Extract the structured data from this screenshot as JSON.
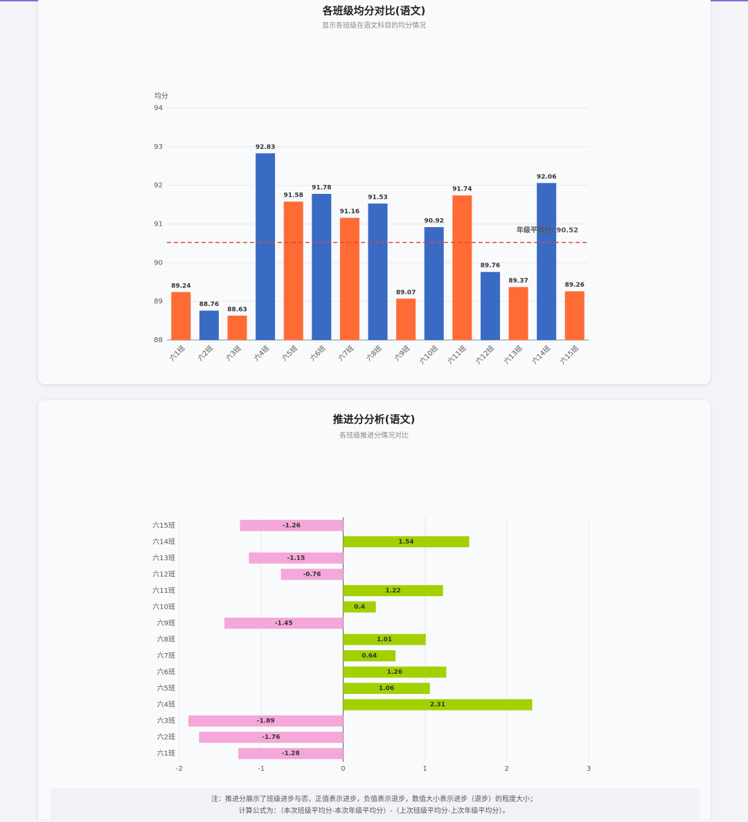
{
  "chart_data": [
    {
      "type": "bar",
      "title": "各班级均分对比(语文)",
      "subtitle": "显示各班级在语文科目的均分情况",
      "y_label": "均分",
      "categories": [
        "六1班",
        "六2班",
        "六3班",
        "六4班",
        "六5班",
        "六6班",
        "六7班",
        "六8班",
        "六9班",
        "六10班",
        "六11班",
        "六12班",
        "六13班",
        "六14班",
        "六15班"
      ],
      "values": [
        89.24,
        88.76,
        88.63,
        92.83,
        91.58,
        91.78,
        91.16,
        91.53,
        89.07,
        90.92,
        91.74,
        89.76,
        89.37,
        92.06,
        89.26
      ],
      "colors": [
        "#ff6b35",
        "#3a6bc4",
        "#ff6b35",
        "#3a6bc4",
        "#ff6b35",
        "#3a6bc4",
        "#ff6b35",
        "#3a6bc4",
        "#ff6b35",
        "#3a6bc4",
        "#ff6b35",
        "#3a6bc4",
        "#ff6b35",
        "#3a6bc4",
        "#ff6b35"
      ],
      "ylim": [
        88,
        94
      ],
      "yticks": [
        88,
        89,
        90,
        91,
        92,
        93,
        94
      ],
      "grid": true,
      "reference_line": {
        "value": 90.52,
        "label": "年级平均分: 90.52",
        "color": "#e0463c"
      }
    },
    {
      "type": "barh",
      "title": "推进分分析(语文)",
      "subtitle": "各班级推进分情况对比",
      "categories": [
        "六1班",
        "六2班",
        "六3班",
        "六4班",
        "六5班",
        "六6班",
        "六7班",
        "六8班",
        "六9班",
        "六10班",
        "六11班",
        "六12班",
        "六13班",
        "六14班",
        "六15班"
      ],
      "values": [
        -1.28,
        -1.76,
        -1.89,
        2.31,
        1.06,
        1.26,
        0.64,
        1.01,
        -1.45,
        0.4,
        1.22,
        -0.76,
        -1.15,
        1.54,
        -1.26
      ],
      "positive_color": "#a3d000",
      "negative_color": "#f4a7d8",
      "xlim": [
        -2,
        3
      ],
      "xticks": [
        -2,
        -1,
        0,
        1,
        2,
        3
      ],
      "grid": true,
      "note": [
        "注：推进分展示了班级进步与否，正值表示进步，负值表示退步，数值大小表示进步（退步）的程度大小；",
        "计算公式为：（本次班级平均分-本次年级平均分）-（上次班级平均分-上次年级平均分）。"
      ]
    }
  ]
}
